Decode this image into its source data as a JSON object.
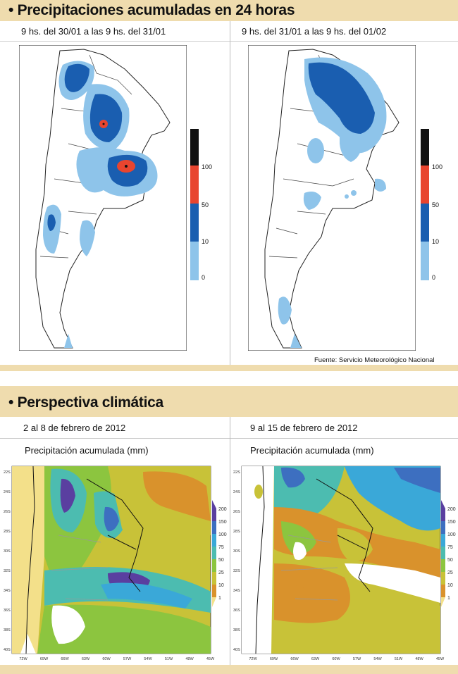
{
  "section1": {
    "title": "• Precipitaciones acumuladas en 24 horas",
    "left_period": "9 hs. del 30/01 a las 9 hs. del 31/01",
    "right_period": "9 hs. del 31/01 a las 9 hs. del 01/02",
    "scale_labels": [
      "100",
      "50",
      "10",
      "0"
    ],
    "scale_colors": [
      "#111111",
      "#e8452f",
      "#1a5eb0",
      "#8ec4ea"
    ],
    "source": "Fuente: Servicio Meteorológico Nacional"
  },
  "section2": {
    "title": "• Perspectiva climática",
    "left_period": "2 al 8 de febrero de 2012",
    "right_period": "9 al 15 de febrero de 2012",
    "left_subtitle": "Precipitación acumulada (mm)",
    "right_subtitle": "Precipitación acumulada (mm)",
    "scale_labels": [
      "200",
      "150",
      "100",
      "75",
      "50",
      "25",
      "10",
      "1"
    ],
    "scale_colors": [
      "#5a3fa0",
      "#3d6fc0",
      "#3aa8d8",
      "#4cbcb0",
      "#8cc53f",
      "#c8c238",
      "#d9922c",
      "#f3e08a"
    ],
    "lat_labels": [
      "22S",
      "24S",
      "26S",
      "28S",
      "30S",
      "32S",
      "34S",
      "36S",
      "38S",
      "40S"
    ],
    "lon_labels": [
      "72W",
      "69W",
      "66W",
      "63W",
      "60W",
      "57W",
      "54W",
      "51W",
      "48W",
      "45W"
    ]
  }
}
